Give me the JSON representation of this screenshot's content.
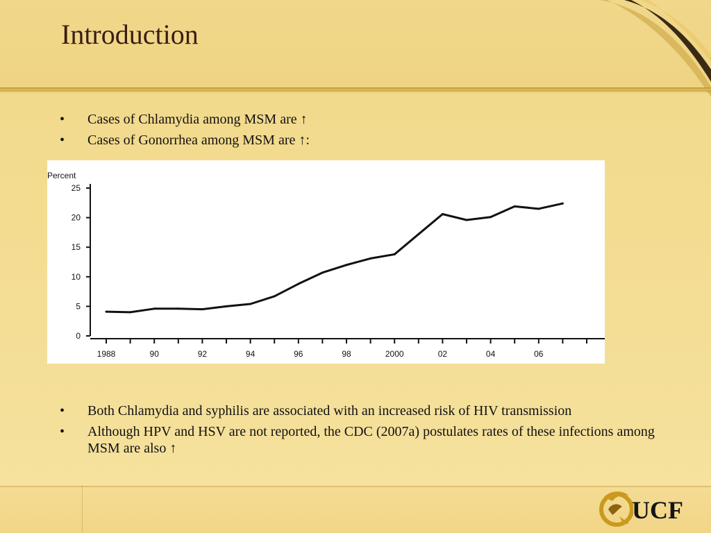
{
  "slide": {
    "title": "Introduction",
    "bullets_top": [
      "Cases of Chlamydia among MSM are ↑",
      "Cases of Gonorrhea among MSM are ↑:"
    ],
    "bullets_bottom": [
      "Both Chlamydia and syphilis are associated with an increased risk of HIV transmission",
      "Although HPV and HSV are not reported, the CDC (2007a) postulates rates of these infections among MSM are also ↑"
    ],
    "logo_text": "UCF"
  },
  "colors": {
    "background": "#f3dc90",
    "title": "#3a1d12",
    "logo_gold": "#c99a1e",
    "line": "#111111"
  },
  "chart_data": {
    "type": "line",
    "title": "",
    "ylabel": "Percent",
    "xlabel": "",
    "ylim": [
      0,
      25
    ],
    "xlim": [
      1988,
      2009
    ],
    "yticks": [
      0,
      5,
      10,
      15,
      20,
      25
    ],
    "xticks": [
      1988,
      1989,
      1990,
      1991,
      1992,
      1993,
      1994,
      1995,
      1996,
      1997,
      1998,
      1999,
      2000,
      2001,
      2002,
      2003,
      2004,
      2005,
      2006,
      2007,
      2008,
      2009
    ],
    "xtick_labels": [
      {
        "x": 1988,
        "label": "1988"
      },
      {
        "x": 1990,
        "label": "90"
      },
      {
        "x": 1992,
        "label": "92"
      },
      {
        "x": 1994,
        "label": "94"
      },
      {
        "x": 1996,
        "label": "96"
      },
      {
        "x": 1998,
        "label": "98"
      },
      {
        "x": 2000,
        "label": "2000"
      },
      {
        "x": 2002,
        "label": "02"
      },
      {
        "x": 2004,
        "label": "04"
      },
      {
        "x": 2006,
        "label": "06"
      }
    ],
    "series": [
      {
        "x": [
          1988,
          1989,
          1990,
          1991,
          1992,
          1993,
          1994,
          1995,
          1996,
          1997,
          1998,
          1999,
          2000,
          2001,
          2002,
          2003,
          2004,
          2005,
          2006,
          2007
        ],
        "values": [
          4.1,
          4.0,
          4.6,
          4.6,
          4.5,
          5.0,
          5.4,
          6.7,
          8.8,
          10.7,
          12.0,
          13.1,
          13.8,
          17.2,
          20.6,
          19.6,
          20.1,
          21.9,
          21.5,
          22.4
        ]
      }
    ],
    "grid": false,
    "legend": "none"
  }
}
